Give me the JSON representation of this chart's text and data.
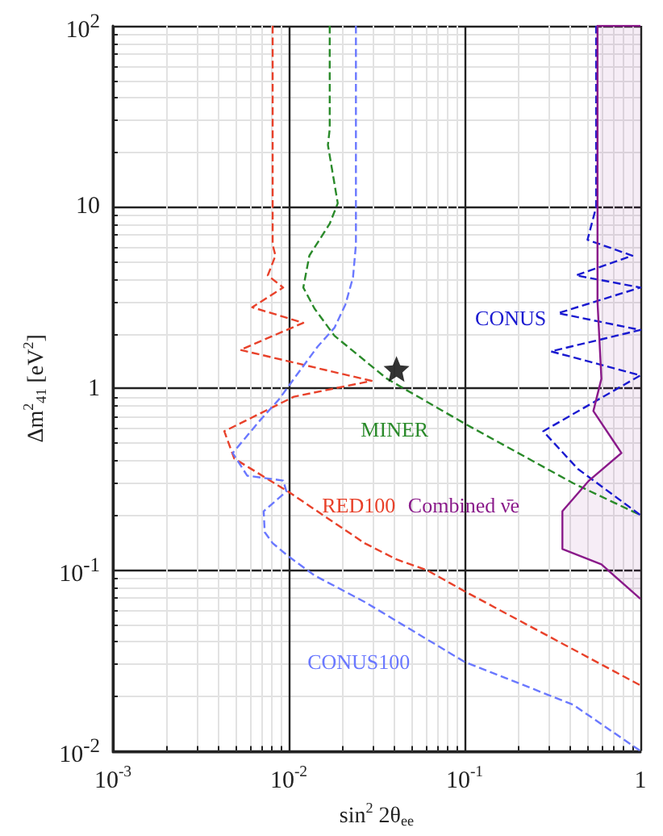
{
  "chart_data": {
    "type": "line",
    "xlabel": "sin$^{2}$ 2θ$_{ee}$",
    "ylabel": "Δm$^{2}$$_{41}$ [eV$^{2}$]",
    "log": "xy",
    "grid": true,
    "xlim": [
      0.001,
      1
    ],
    "ylim": [
      0.01,
      100
    ],
    "xticks": [
      {
        "value": 0.001,
        "label": "10$^{-3}$"
      },
      {
        "value": 0.01,
        "label": "10$^{-2}$"
      },
      {
        "value": 0.1,
        "label": "10$^{-1}$"
      },
      1
    ],
    "yticks": [
      {
        "value": 0.01,
        "label": "10$^{-2}$"
      },
      {
        "value": 0.1,
        "label": "10$^{-1}$"
      },
      1,
      10,
      {
        "value": 100,
        "label": "10$^{2}$"
      }
    ],
    "series": [
      {
        "name": "RED100",
        "color": "#e8412a",
        "line_style": "dashed",
        "marker": "none",
        "x": [
          0.0081,
          0.0081,
          0.0084,
          0.0076,
          0.0093,
          0.0062,
          0.0121,
          0.0053,
          0.0296,
          0.0107,
          0.0043,
          0.0049,
          0.0099,
          0.027,
          0.041,
          0.0615,
          0.1,
          1
        ],
        "values": [
          100,
          6.2,
          5.4,
          4.2,
          3.6,
          2.8,
          2.3,
          1.63,
          1.1,
          0.9,
          0.58,
          0.41,
          0.27,
          0.14,
          0.114,
          0.099,
          0.076,
          0.023
        ]
      },
      {
        "name": "MINER",
        "color": "#2a8a2a",
        "line_style": "dashed",
        "marker": "none",
        "x": [
          0.0171,
          0.0171,
          0.0167,
          0.019,
          0.0171,
          0.0131,
          0.0121,
          0.014,
          0.0182,
          0.0362,
          0.1,
          0.414,
          1
        ],
        "values": [
          100,
          27,
          22,
          10.5,
          8.1,
          5.4,
          3.6,
          2.76,
          1.95,
          1.13,
          0.64,
          0.3,
          0.2
        ]
      },
      {
        "name": "CONUS100",
        "color": "#6a78ff",
        "line_style": "dashed",
        "marker": "none",
        "x": [
          0.0241,
          0.0241,
          0.0232,
          0.021,
          0.0182,
          0.0146,
          0.0107,
          0.0088,
          0.0069,
          0.0048,
          0.0058,
          0.0093,
          0.0097,
          0.0072,
          0.0073,
          0.0081,
          0.0099,
          0.014,
          0.0273,
          0.1,
          0.414,
          1
        ],
        "values": [
          100,
          6.2,
          4.1,
          2.9,
          2.16,
          1.7,
          1.13,
          0.87,
          0.67,
          0.44,
          0.33,
          0.31,
          0.27,
          0.21,
          0.161,
          0.14,
          0.119,
          0.093,
          0.066,
          0.031,
          0.018,
          0.01
        ]
      },
      {
        "name": "CONUS",
        "color": "#1a1ad0",
        "line_style": "dashed",
        "marker": "none",
        "x": [
          0.56,
          0.56,
          0.5,
          0.9,
          0.43,
          1,
          0.34,
          1,
          0.31,
          1,
          0.28,
          0.44,
          1
        ],
        "values": [
          100,
          10,
          6.6,
          5.4,
          4.2,
          3.6,
          2.6,
          2.1,
          1.6,
          1.18,
          0.58,
          0.36,
          0.2
        ]
      },
      {
        "name": "Combined ν̄e",
        "type": "area",
        "color": "#8a1a8a",
        "line_style": "solid",
        "marker": "none",
        "x": [
          1,
          0.57,
          0.57,
          0.6,
          0.54,
          0.78,
          0.51,
          0.36,
          0.36,
          0.6,
          1
        ],
        "values": [
          100,
          100,
          3,
          1.13,
          0.75,
          0.44,
          0.31,
          0.21,
          0.13,
          0.107,
          0.069
        ]
      },
      {
        "type": "scatter",
        "color": "#000000",
        "marker": "star",
        "x": [
          0.041
        ],
        "values": [
          1.28
        ]
      }
    ]
  }
}
